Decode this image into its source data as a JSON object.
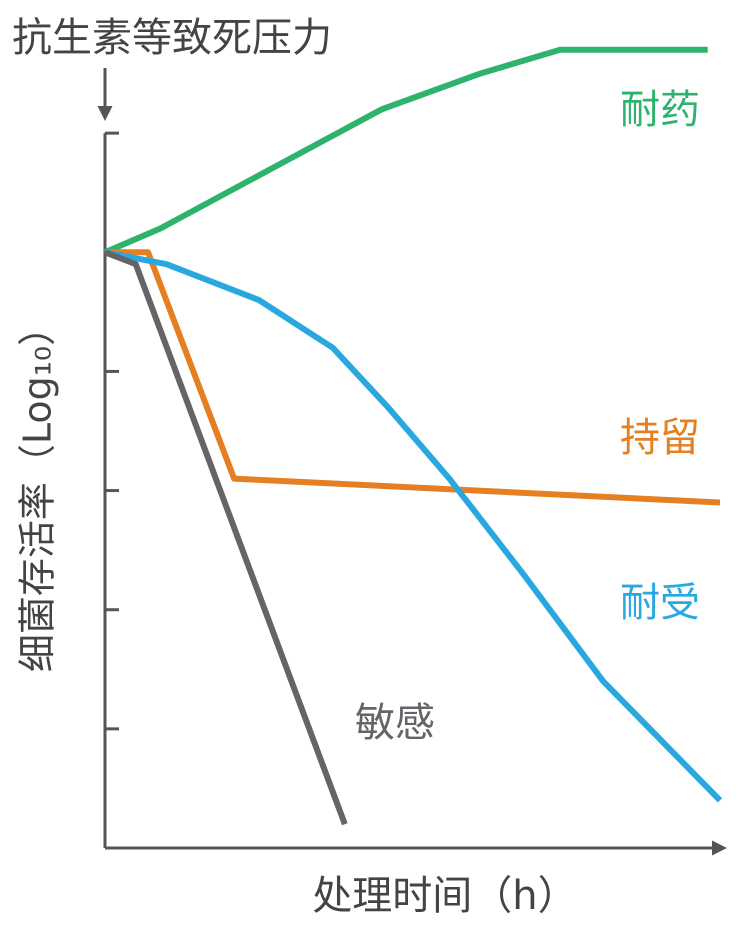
{
  "chart_data": {
    "type": "line",
    "title": "抗生素等致死压力",
    "x_label": "处理时间（h）",
    "y_label": "细菌存活率（Log₁₀）",
    "xlim": [
      0,
      10
    ],
    "ylim": [
      -5,
      2
    ],
    "yticks": [
      1,
      0,
      -1,
      -2,
      -3,
      -4
    ],
    "series": [
      {
        "name": "耐药",
        "color": "#2db36b",
        "x": [
          0,
          0.9,
          2.7,
          4.5,
          6.1,
          7.4,
          8.4,
          9.8
        ],
        "values": [
          0,
          0.2,
          0.7,
          1.2,
          1.5,
          1.7,
          1.7,
          1.7
        ]
      },
      {
        "name": "持留",
        "color": "#e57f22",
        "x": [
          0,
          0.7,
          2.1,
          10.0
        ],
        "values": [
          0,
          0,
          -1.9,
          -2.1
        ]
      },
      {
        "name": "耐受",
        "color": "#29a8e0",
        "x": [
          0,
          1.0,
          2.5,
          3.7,
          4.6,
          5.6,
          6.8,
          8.1,
          10.0
        ],
        "values": [
          0,
          -0.1,
          -0.4,
          -0.8,
          -1.3,
          -1.9,
          -2.7,
          -3.6,
          -4.6
        ]
      },
      {
        "name": "敏感",
        "color": "#646469",
        "x": [
          0,
          0.5,
          3.9
        ],
        "values": [
          0,
          -0.1,
          -4.8
        ]
      }
    ]
  }
}
